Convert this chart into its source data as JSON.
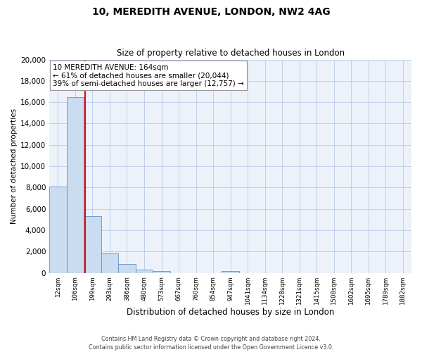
{
  "title": "10, MEREDITH AVENUE, LONDON, NW2 4AG",
  "subtitle": "Size of property relative to detached houses in London",
  "xlabel": "Distribution of detached houses by size in London",
  "ylabel": "Number of detached properties",
  "bin_labels": [
    "12sqm",
    "106sqm",
    "199sqm",
    "293sqm",
    "386sqm",
    "480sqm",
    "573sqm",
    "667sqm",
    "760sqm",
    "854sqm",
    "947sqm",
    "1041sqm",
    "1134sqm",
    "1228sqm",
    "1321sqm",
    "1415sqm",
    "1508sqm",
    "1602sqm",
    "1695sqm",
    "1789sqm",
    "1882sqm"
  ],
  "bar_values": [
    8100,
    16500,
    5300,
    1800,
    800,
    300,
    150,
    0,
    0,
    0,
    150,
    0,
    0,
    0,
    0,
    0,
    0,
    0,
    0,
    0,
    0
  ],
  "bar_color": "#c9dcf0",
  "bar_edge_color": "#6090c8",
  "ylim": [
    0,
    20000
  ],
  "yticks": [
    0,
    2000,
    4000,
    6000,
    8000,
    10000,
    12000,
    14000,
    16000,
    18000,
    20000
  ],
  "vline_x": 1.58,
  "vline_color": "red",
  "annotation_title": "10 MEREDITH AVENUE: 164sqm",
  "annotation_line1": "← 61% of detached houses are smaller (20,044)",
  "annotation_line2": "39% of semi-detached houses are larger (12,757) →",
  "annotation_box_color": "white",
  "annotation_box_edge": "#999999",
  "footer_line1": "Contains HM Land Registry data © Crown copyright and database right 2024.",
  "footer_line2": "Contains public sector information licensed under the Open Government Licence v3.0.",
  "background_color": "#edf2fa",
  "grid_color": "#c0cfe8"
}
